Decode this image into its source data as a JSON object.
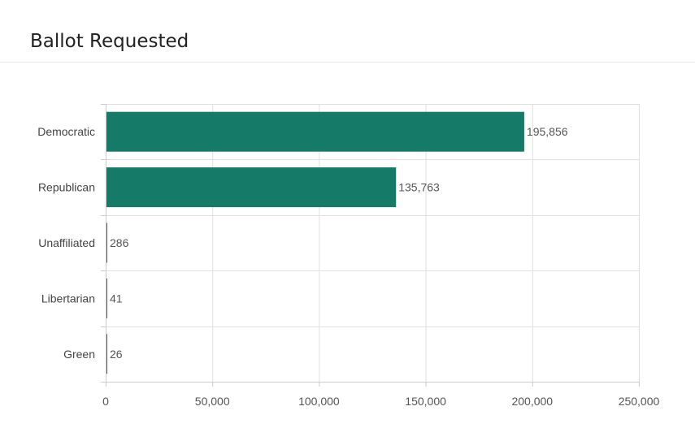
{
  "header": {
    "title": "Ballot Requested"
  },
  "colors": {
    "bar": "#157b68",
    "grid": "#e0e0e0",
    "axis": "#cccccc"
  },
  "chart_data": {
    "type": "bar",
    "orientation": "horizontal",
    "categories": [
      "Democratic",
      "Republican",
      "Unaffiliated",
      "Libertarian",
      "Green"
    ],
    "values": [
      195856,
      135763,
      286,
      41,
      26
    ],
    "value_labels": [
      "195,856",
      "135,763",
      "286",
      "41",
      "26"
    ],
    "x_ticks": [
      "0",
      "50,000",
      "100,000",
      "150,000",
      "200,000",
      "250,000"
    ],
    "xlim": [
      0,
      250000
    ],
    "grid": true,
    "legend": "none"
  }
}
